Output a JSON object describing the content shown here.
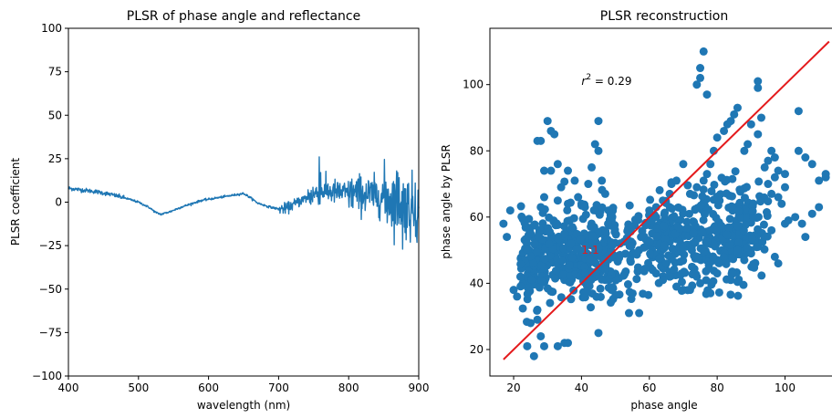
{
  "chart_data": [
    {
      "type": "line",
      "title": "PLSR of phase angle and reflectance",
      "xlabel": "wavelength (nm)",
      "ylabel": "PLSR coefficient",
      "xlim": [
        400,
        900
      ],
      "ylim": [
        -100,
        100
      ],
      "x_ticks": [
        400,
        500,
        600,
        700,
        800,
        900
      ],
      "x_tick_labels": [
        "400",
        "500",
        "600",
        "700",
        "800",
        "900"
      ],
      "y_ticks": [
        -100,
        -75,
        -50,
        -25,
        0,
        25,
        50,
        75,
        100
      ],
      "y_tick_labels": [
        "−100",
        "−75",
        "−50",
        "−25",
        "0",
        "25",
        "50",
        "75",
        "100"
      ],
      "grid": false,
      "color": "#1f77b4",
      "profile": {
        "x": [
          400,
          420,
          440,
          460,
          480,
          500,
          515,
          525,
          532,
          545,
          560,
          575,
          590,
          605,
          620,
          635,
          650,
          660,
          670,
          685,
          700,
          712,
          725,
          740,
          750,
          760,
          775,
          790,
          810,
          830,
          850,
          870,
          885,
          900
        ],
        "y": [
          8,
          7,
          6,
          4.5,
          2.5,
          0,
          -3,
          -6,
          -7,
          -5.5,
          -3,
          -1,
          1,
          2,
          3,
          4,
          5,
          2.5,
          -0.5,
          -2.5,
          -4,
          -3.5,
          -0.5,
          2.5,
          4.5,
          6.5,
          6,
          5.5,
          5,
          4,
          3,
          0.5,
          -2,
          -5
        ]
      },
      "noise": [
        {
          "range": [
            400,
            480
          ],
          "amplitude": 0.6
        },
        {
          "range": [
            480,
            700
          ],
          "amplitude": 0.3
        },
        {
          "range": [
            700,
            740
          ],
          "amplitude": 1.5
        },
        {
          "range": [
            740,
            800
          ],
          "amplitude": 3.5
        },
        {
          "range": [
            800,
            850
          ],
          "amplitude": 5.5
        },
        {
          "range": [
            850,
            900
          ],
          "amplitude": 9
        }
      ],
      "spikes": [
        {
          "x": 758,
          "y": 26
        },
        {
          "x": 760,
          "y": 17
        },
        {
          "x": 870,
          "y": 17
        },
        {
          "x": 877,
          "y": -27
        },
        {
          "x": 888,
          "y": -23
        },
        {
          "x": 895,
          "y": 11
        }
      ]
    },
    {
      "type": "scatter",
      "title": "PLSR reconstruction",
      "xlabel": "phase angle",
      "ylabel": "phase angle by PLSR",
      "xlim": [
        13,
        116
      ],
      "ylim": [
        12,
        117
      ],
      "x_ticks": [
        20,
        40,
        60,
        80,
        100
      ],
      "x_tick_labels": [
        "20",
        "40",
        "60",
        "80",
        "100"
      ],
      "y_ticks": [
        20,
        40,
        60,
        80,
        100
      ],
      "y_tick_labels": [
        "20",
        "40",
        "60",
        "80",
        "100"
      ],
      "grid": false,
      "point_color": "#1f77b4",
      "annotation": {
        "text": "r² = 0.29",
        "prefix": "r",
        "sup": "2",
        "rest": " = 0.29",
        "x": 40,
        "y": 101
      },
      "reference_line": {
        "label": "1:1",
        "color": "#e41a1c",
        "x": [
          17,
          113
        ],
        "y": [
          17,
          113
        ]
      },
      "label_position": {
        "x": 40,
        "y": 50
      },
      "outliers": [
        [
          17,
          58
        ],
        [
          18,
          54
        ],
        [
          19,
          62
        ],
        [
          20,
          38
        ],
        [
          21,
          36
        ],
        [
          22,
          42
        ],
        [
          24,
          21
        ],
        [
          25,
          28
        ],
        [
          26,
          18
        ],
        [
          27,
          32
        ],
        [
          27,
          29
        ],
        [
          28,
          24
        ],
        [
          27,
          83
        ],
        [
          28,
          83
        ],
        [
          28,
          63
        ],
        [
          29,
          74
        ],
        [
          29,
          66
        ],
        [
          30,
          89
        ],
        [
          31,
          86
        ],
        [
          31,
          74
        ],
        [
          32,
          85
        ],
        [
          33,
          76
        ],
        [
          33,
          65
        ],
        [
          34,
          69
        ],
        [
          35,
          55
        ],
        [
          36,
          74
        ],
        [
          36,
          64
        ],
        [
          37,
          52
        ],
        [
          38,
          71
        ],
        [
          39,
          66
        ],
        [
          40,
          64
        ],
        [
          41,
          63
        ],
        [
          42,
          70
        ],
        [
          43,
          75
        ],
        [
          44,
          82
        ],
        [
          45,
          80
        ],
        [
          45,
          89
        ],
        [
          46,
          71
        ],
        [
          47,
          67
        ],
        [
          48,
          62
        ],
        [
          29,
          21
        ],
        [
          33,
          21
        ],
        [
          35,
          22
        ],
        [
          36,
          22
        ],
        [
          45,
          25
        ],
        [
          54,
          31
        ],
        [
          57,
          31
        ],
        [
          61,
          44
        ],
        [
          62,
          43
        ],
        [
          64,
          41
        ],
        [
          66,
          42
        ],
        [
          68,
          39
        ],
        [
          70,
          38
        ],
        [
          72,
          38
        ],
        [
          74,
          42
        ],
        [
          75,
          40
        ],
        [
          78,
          37
        ],
        [
          80,
          43
        ],
        [
          82,
          48
        ],
        [
          84,
          41
        ],
        [
          86,
          50
        ],
        [
          88,
          47
        ],
        [
          90,
          49
        ],
        [
          92,
          51
        ],
        [
          94,
          54
        ],
        [
          96,
          56
        ],
        [
          97,
          48
        ],
        [
          98,
          46
        ],
        [
          100,
          58
        ],
        [
          101,
          59
        ],
        [
          103,
          60
        ],
        [
          105,
          58
        ],
        [
          106,
          54
        ],
        [
          108,
          61
        ],
        [
          110,
          63
        ],
        [
          112,
          72
        ],
        [
          104,
          92
        ],
        [
          104,
          80
        ],
        [
          106,
          78
        ],
        [
          108,
          76
        ],
        [
          110,
          71
        ],
        [
          112,
          73
        ],
        [
          76,
          110
        ],
        [
          75,
          105
        ],
        [
          75,
          102
        ],
        [
          74,
          100
        ],
        [
          77,
          97
        ],
        [
          92,
          101
        ],
        [
          92,
          99
        ],
        [
          93,
          90
        ],
        [
          92,
          85
        ],
        [
          90,
          88
        ],
        [
          89,
          82
        ],
        [
          88,
          80
        ],
        [
          86,
          93
        ],
        [
          85,
          91
        ],
        [
          84,
          89
        ],
        [
          83,
          88
        ],
        [
          82,
          86
        ],
        [
          80,
          84
        ],
        [
          79,
          80
        ],
        [
          78,
          76
        ],
        [
          77,
          73
        ],
        [
          76,
          71
        ],
        [
          74,
          69
        ],
        [
          72,
          67
        ],
        [
          70,
          76
        ],
        [
          68,
          71
        ],
        [
          66,
          67
        ],
        [
          64,
          65
        ],
        [
          62,
          63
        ],
        [
          60,
          62
        ],
        [
          95,
          70
        ],
        [
          96,
          67
        ],
        [
          97,
          72
        ],
        [
          98,
          66
        ],
        [
          99,
          64
        ],
        [
          100,
          69
        ],
        [
          94,
          75
        ],
        [
          95,
          77
        ],
        [
          96,
          80
        ],
        [
          97,
          78
        ],
        [
          98,
          74
        ],
        [
          100,
          73
        ]
      ]
    }
  ]
}
